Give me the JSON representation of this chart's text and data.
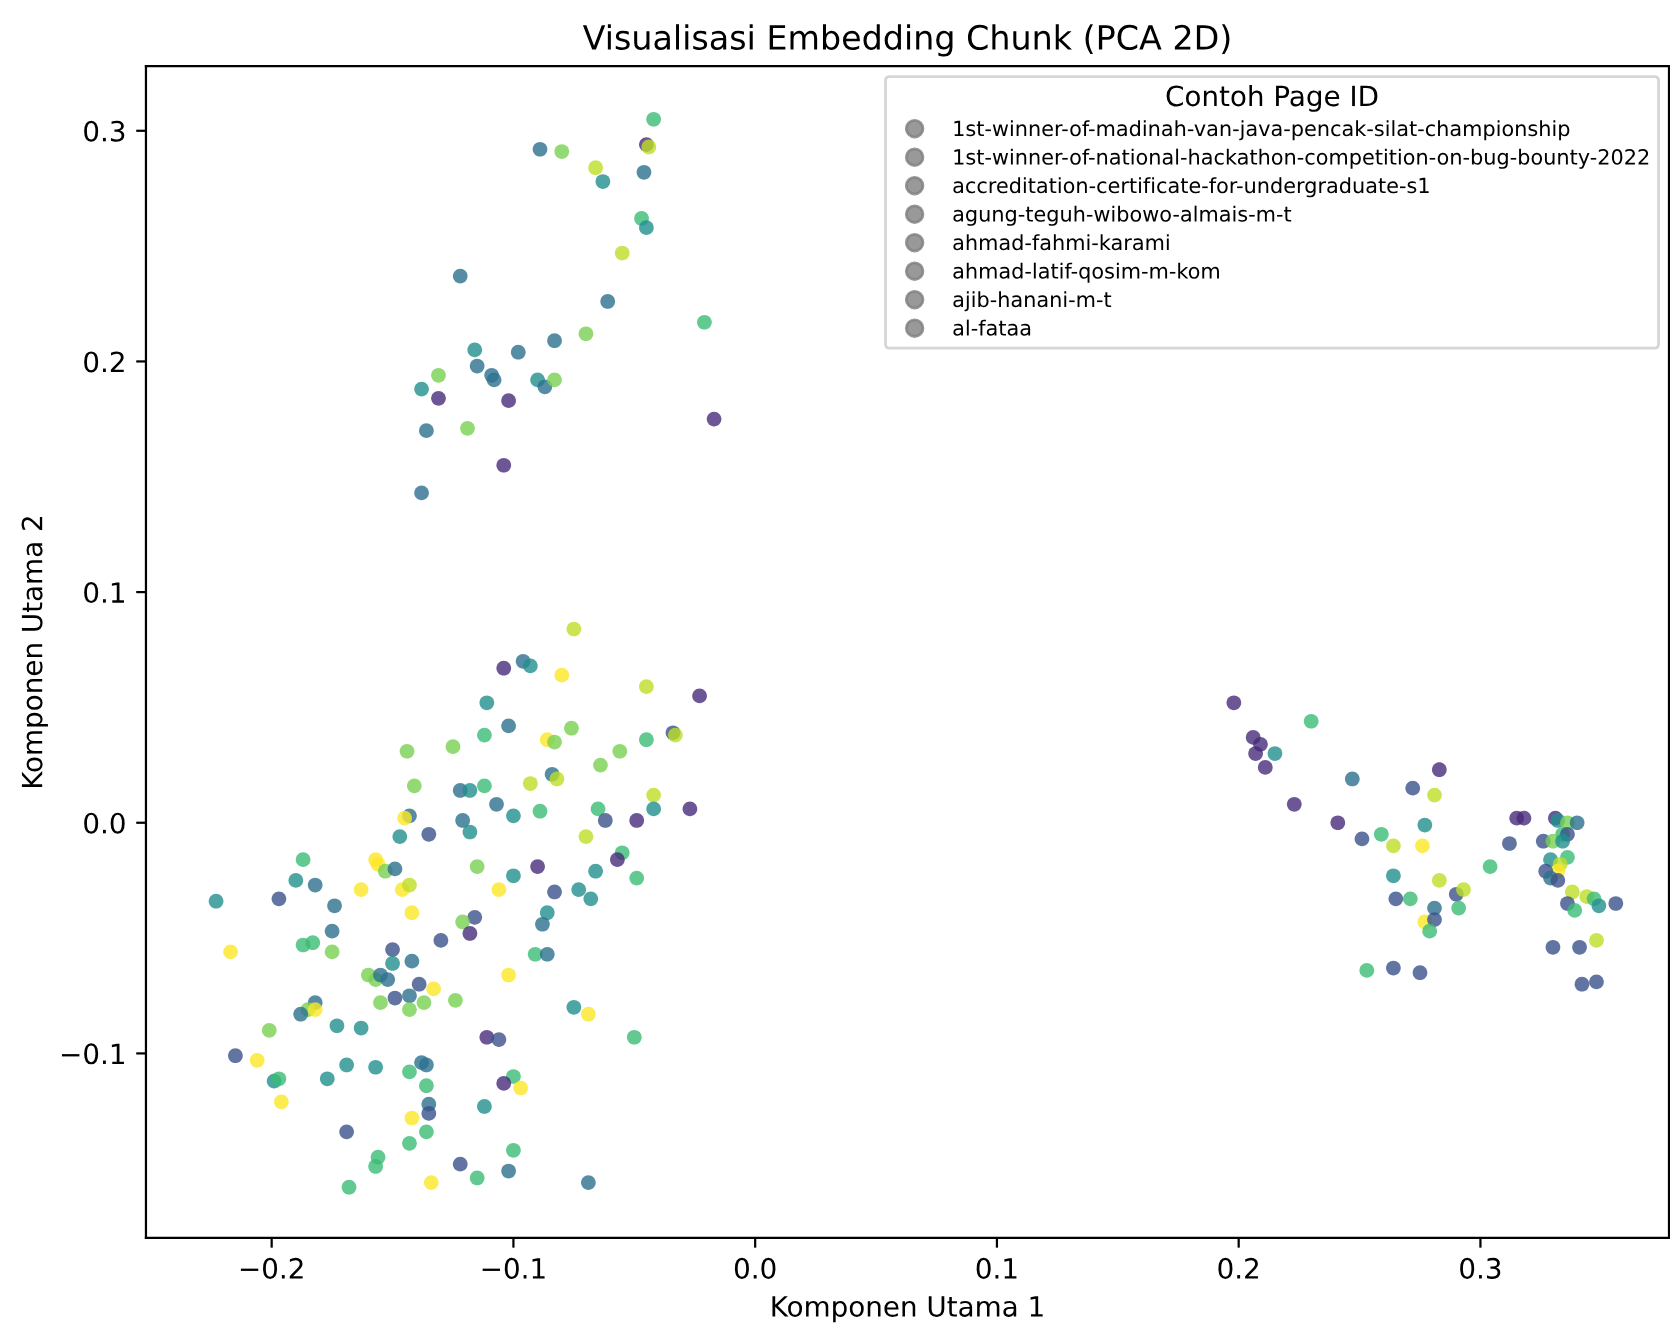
{
  "chart_data": {
    "type": "scatter",
    "title": "Visualisasi Embedding Chunk (PCA 2D)",
    "xlabel": "Komponen Utama 1",
    "ylabel": "Komponen Utama 2",
    "legend_title": "Contoh Page ID",
    "legend": "top right",
    "grid": false,
    "marker": "circle",
    "xlim": [
      -0.252,
      0.378
    ],
    "ylim": [
      -0.18,
      0.328
    ],
    "xticks": [
      {
        "value": -0.2,
        "label": "−0.2"
      },
      {
        "value": -0.1,
        "label": "−0.1"
      },
      {
        "value": 0.0,
        "label": "0.0"
      },
      {
        "value": 0.1,
        "label": "0.1"
      },
      {
        "value": 0.2,
        "label": "0.2"
      },
      {
        "value": 0.3,
        "label": "0.3"
      }
    ],
    "yticks": [
      {
        "value": -0.1,
        "label": "−0.1"
      },
      {
        "value": 0.0,
        "label": "0.0"
      },
      {
        "value": 0.1,
        "label": "0.1"
      },
      {
        "value": 0.2,
        "label": "0.2"
      },
      {
        "value": 0.3,
        "label": "0.3"
      }
    ],
    "series": [
      {
        "x": [
          -0.075,
          -0.104,
          -0.096,
          -0.093,
          -0.08,
          -0.045,
          -0.023,
          -0.111,
          -0.102,
          -0.076,
          -0.086,
          -0.083,
          -0.034,
          -0.033,
          -0.045,
          -0.056,
          -0.064,
          -0.144,
          -0.125,
          -0.112,
          -0.084,
          -0.082,
          -0.093,
          -0.141,
          -0.122,
          -0.118,
          -0.112,
          -0.107,
          -0.1,
          -0.089,
          -0.042,
          -0.042,
          -0.065,
          -0.062,
          -0.049,
          -0.027,
          -0.143,
          -0.145,
          -0.121,
          -0.118,
          -0.135,
          -0.147,
          -0.07,
          -0.187,
          -0.157,
          -0.156,
          -0.153,
          -0.149,
          -0.055,
          -0.057,
          -0.115,
          -0.09,
          -0.1,
          -0.066,
          -0.049,
          -0.19,
          -0.182,
          -0.163,
          -0.146,
          -0.143,
          -0.106,
          -0.083,
          -0.073,
          -0.068,
          -0.223,
          -0.197,
          -0.174,
          -0.142,
          -0.086,
          -0.116,
          -0.088,
          -0.121,
          -0.118,
          -0.175,
          -0.13,
          -0.187,
          -0.183,
          -0.175,
          -0.217,
          -0.15,
          -0.091,
          -0.086,
          -0.15,
          -0.142,
          -0.102,
          -0.16,
          -0.157,
          -0.155,
          -0.152,
          -0.139,
          -0.133,
          -0.149,
          -0.143,
          -0.137,
          -0.155,
          -0.143,
          -0.124,
          -0.182,
          -0.185,
          -0.182,
          -0.188,
          -0.075,
          -0.069,
          -0.173,
          -0.163,
          -0.201,
          -0.111,
          -0.106,
          -0.05,
          -0.215,
          -0.206,
          -0.169,
          -0.157,
          -0.138,
          -0.136,
          -0.143,
          -0.199,
          -0.197,
          -0.177,
          -0.136,
          -0.1,
          -0.104,
          -0.097,
          -0.196,
          -0.135,
          -0.135,
          -0.112,
          -0.142,
          -0.169,
          -0.136,
          -0.143,
          -0.156,
          -0.157,
          -0.122,
          -0.1,
          -0.102,
          -0.115,
          -0.168,
          -0.134,
          -0.069,
          -0.042,
          -0.089,
          -0.08,
          -0.045,
          -0.044,
          -0.066,
          -0.063,
          -0.046,
          -0.047,
          -0.045,
          -0.055,
          -0.122,
          -0.061,
          -0.021,
          -0.07,
          -0.083,
          -0.116,
          -0.098,
          -0.115,
          -0.131,
          -0.109,
          -0.108,
          -0.09,
          -0.087,
          -0.083,
          -0.138,
          -0.131,
          -0.102,
          -0.017,
          -0.136,
          -0.119,
          -0.104,
          -0.138,
          0.198,
          0.23,
          0.206,
          0.209,
          0.207,
          0.215,
          0.211,
          0.223,
          0.247,
          0.283,
          0.272,
          0.281,
          0.241,
          0.251,
          0.259,
          0.264,
          0.276,
          0.277,
          0.264,
          0.283,
          0.304,
          0.265,
          0.271,
          0.29,
          0.293,
          0.281,
          0.291,
          0.277,
          0.281,
          0.279,
          0.253,
          0.264,
          0.275,
          0.315,
          0.318,
          0.331,
          0.332,
          0.336,
          0.34,
          0.334,
          0.336,
          0.312,
          0.326,
          0.33,
          0.334,
          0.336,
          0.329,
          0.333,
          0.332,
          0.327,
          0.329,
          0.332,
          0.338,
          0.344,
          0.347,
          0.349,
          0.356,
          0.336,
          0.339,
          0.348,
          0.33,
          0.341,
          0.342,
          0.348
        ],
        "values": [
          0.084,
          0.067,
          0.07,
          0.068,
          0.064,
          0.059,
          0.055,
          0.052,
          0.042,
          0.041,
          0.036,
          0.035,
          0.039,
          0.038,
          0.036,
          0.031,
          0.025,
          0.031,
          0.033,
          0.038,
          0.021,
          0.019,
          0.017,
          0.016,
          0.014,
          0.014,
          0.016,
          0.008,
          0.003,
          0.005,
          0.012,
          0.006,
          0.006,
          0.001,
          0.001,
          0.006,
          0.003,
          0.002,
          0.001,
          -0.004,
          -0.005,
          -0.006,
          -0.006,
          -0.016,
          -0.016,
          -0.018,
          -0.021,
          -0.02,
          -0.013,
          -0.016,
          -0.019,
          -0.019,
          -0.023,
          -0.021,
          -0.024,
          -0.025,
          -0.027,
          -0.029,
          -0.029,
          -0.027,
          -0.029,
          -0.03,
          -0.029,
          -0.033,
          -0.034,
          -0.033,
          -0.036,
          -0.039,
          -0.039,
          -0.041,
          -0.044,
          -0.043,
          -0.048,
          -0.047,
          -0.051,
          -0.053,
          -0.052,
          -0.056,
          -0.056,
          -0.055,
          -0.057,
          -0.057,
          -0.061,
          -0.06,
          -0.066,
          -0.066,
          -0.068,
          -0.066,
          -0.068,
          -0.07,
          -0.072,
          -0.076,
          -0.075,
          -0.078,
          -0.078,
          -0.081,
          -0.077,
          -0.078,
          -0.081,
          -0.081,
          -0.083,
          -0.08,
          -0.083,
          -0.088,
          -0.089,
          -0.09,
          -0.093,
          -0.094,
          -0.093,
          -0.101,
          -0.103,
          -0.105,
          -0.106,
          -0.104,
          -0.105,
          -0.108,
          -0.112,
          -0.111,
          -0.111,
          -0.114,
          -0.11,
          -0.113,
          -0.115,
          -0.121,
          -0.122,
          -0.126,
          -0.123,
          -0.128,
          -0.134,
          -0.134,
          -0.139,
          -0.145,
          -0.149,
          -0.148,
          -0.142,
          -0.151,
          -0.154,
          -0.158,
          -0.156,
          -0.156,
          0.305,
          0.292,
          0.291,
          0.294,
          0.293,
          0.284,
          0.278,
          0.282,
          0.262,
          0.258,
          0.247,
          0.237,
          0.226,
          0.217,
          0.212,
          0.209,
          0.205,
          0.204,
          0.198,
          0.194,
          0.194,
          0.192,
          0.192,
          0.189,
          0.192,
          0.188,
          0.184,
          0.183,
          0.175,
          0.17,
          0.171,
          0.155,
          0.143,
          0.052,
          0.044,
          0.037,
          0.034,
          0.03,
          0.03,
          0.024,
          0.008,
          0.019,
          0.023,
          0.015,
          0.012,
          0.0,
          -0.007,
          -0.005,
          -0.01,
          -0.01,
          -0.001,
          -0.023,
          -0.025,
          -0.019,
          -0.033,
          -0.033,
          -0.031,
          -0.029,
          -0.037,
          -0.037,
          -0.043,
          -0.042,
          -0.047,
          -0.064,
          -0.063,
          -0.065,
          0.002,
          0.002,
          0.002,
          0.001,
          0.0,
          0.0,
          -0.005,
          -0.005,
          -0.009,
          -0.008,
          -0.008,
          -0.008,
          -0.015,
          -0.016,
          -0.018,
          -0.021,
          -0.021,
          -0.024,
          -0.025,
          -0.03,
          -0.032,
          -0.033,
          -0.036,
          -0.035,
          -0.035,
          -0.038,
          -0.051,
          -0.054,
          -0.054,
          -0.07,
          -0.069
        ],
        "colors": [
          "#bddf26",
          "#472c7a",
          "#2c718e",
          "#21908d",
          "#fde725",
          "#bddf26",
          "#472c7a",
          "#21908d",
          "#2c718e",
          "#78d152",
          "#fde725",
          "#78d152",
          "#3b518b",
          "#bddf26",
          "#3bbb75",
          "#78d152",
          "#78d152",
          "#78d152",
          "#78d152",
          "#3bbb75",
          "#2c718e",
          "#bddf26",
          "#bddf26",
          "#78d152",
          "#2c718e",
          "#21908d",
          "#3bbb75",
          "#2c718e",
          "#21908d",
          "#3bbb75",
          "#bddf26",
          "#21908d",
          "#3bbb75",
          "#3b518b",
          "#472c7a",
          "#472c7a",
          "#2c718e",
          "#fde725",
          "#2c718e",
          "#21908d",
          "#3b518b",
          "#21908d",
          "#bddf26",
          "#3bbb75",
          "#fde725",
          "#fde725",
          "#78d152",
          "#2c718e",
          "#3bbb75",
          "#472c7a",
          "#78d152",
          "#472c7a",
          "#21908d",
          "#21908d",
          "#3bbb75",
          "#21908d",
          "#2c718e",
          "#fde725",
          "#fde725",
          "#bddf26",
          "#fde725",
          "#3b518b",
          "#21908d",
          "#21908d",
          "#21908d",
          "#3b518b",
          "#2c718e",
          "#fde725",
          "#21908d",
          "#3b518b",
          "#2c718e",
          "#78d152",
          "#472c7a",
          "#2c718e",
          "#3b518b",
          "#3bbb75",
          "#3bbb75",
          "#78d152",
          "#fde725",
          "#3b518b",
          "#3bbb75",
          "#2c718e",
          "#21908d",
          "#2c718e",
          "#fde725",
          "#78d152",
          "#78d152",
          "#2c718e",
          "#2c718e",
          "#3b518b",
          "#fde725",
          "#3b518b",
          "#2c718e",
          "#78d152",
          "#78d152",
          "#78d152",
          "#78d152",
          "#2c718e",
          "#78d152",
          "#fde725",
          "#2c718e",
          "#21908d",
          "#fde725",
          "#21908d",
          "#21908d",
          "#78d152",
          "#472c7a",
          "#3b518b",
          "#3bbb75",
          "#3b518b",
          "#fde725",
          "#21908d",
          "#21908d",
          "#2c718e",
          "#2c718e",
          "#3bbb75",
          "#21908d",
          "#3bbb75",
          "#21908d",
          "#3bbb75",
          "#3bbb75",
          "#472c7a",
          "#fde725",
          "#fde725",
          "#2c718e",
          "#3b518b",
          "#21908d",
          "#fde725",
          "#3b518b",
          "#3bbb75",
          "#3bbb75",
          "#3bbb75",
          "#3bbb75",
          "#3b518b",
          "#3bbb75",
          "#2c718e",
          "#3bbb75",
          "#3bbb75",
          "#fde725",
          "#2c718e",
          "#3bbb75",
          "#2c718e",
          "#78d152",
          "#472c7a",
          "#bddf26",
          "#bddf26",
          "#21908d",
          "#2c718e",
          "#3bbb75",
          "#21908d",
          "#bddf26",
          "#2c718e",
          "#2c718e",
          "#3bbb75",
          "#78d152",
          "#2c718e",
          "#21908d",
          "#2c718e",
          "#2c718e",
          "#78d152",
          "#2c718e",
          "#2c718e",
          "#21908d",
          "#2c718e",
          "#78d152",
          "#21908d",
          "#472c7a",
          "#472c7a",
          "#472c7a",
          "#2c718e",
          "#78d152",
          "#472c7a",
          "#2c718e",
          "#472c7a",
          "#3bbb75",
          "#472c7a",
          "#472c7a",
          "#472c7a",
          "#21908d",
          "#472c7a",
          "#472c7a",
          "#2c718e",
          "#472c7a",
          "#3b518b",
          "#bddf26",
          "#472c7a",
          "#3b518b",
          "#3bbb75",
          "#bddf26",
          "#fde725",
          "#21908d",
          "#21908d",
          "#bddf26",
          "#3bbb75",
          "#3b518b",
          "#3bbb75",
          "#3b518b",
          "#bddf26",
          "#2c718e",
          "#3bbb75",
          "#fde725",
          "#3b518b",
          "#3bbb75",
          "#3bbb75",
          "#3b518b",
          "#3b518b",
          "#472c7a",
          "#472c7a",
          "#472c7a",
          "#21908d",
          "#78d152",
          "#2c718e",
          "#3bbb75",
          "#3b518b",
          "#3b518b",
          "#3b518b",
          "#78d152",
          "#21908d",
          "#3bbb75",
          "#21908d",
          "#bddf26",
          "#fde725",
          "#3b518b",
          "#2c718e",
          "#3b518b",
          "#bddf26",
          "#bddf26",
          "#3bbb75",
          "#21908d",
          "#3b518b",
          "#3b518b",
          "#3bbb75",
          "#bddf26",
          "#3b518b",
          "#3b518b",
          "#3b518b",
          "#3b518b"
        ]
      },
      {
        "name": "1st-winner-of-madinah-van-java-pencak-silat-championship",
        "color": "#808080"
      },
      {
        "name": "1st-winner-of-national-hackathon-competition-on-bug-bounty-2022",
        "color": "#808080"
      },
      {
        "name": "accreditation-certificate-for-undergraduate-s1",
        "color": "#808080"
      },
      {
        "name": "agung-teguh-wibowo-almais-m-t",
        "color": "#808080"
      },
      {
        "name": "ahmad-fahmi-karami",
        "color": "#808080"
      },
      {
        "name": "ahmad-latif-qosim-m-kom",
        "color": "#808080"
      },
      {
        "name": "ajib-hanani-m-t",
        "color": "#808080"
      },
      {
        "name": "al-fataa",
        "color": "#808080"
      }
    ]
  }
}
